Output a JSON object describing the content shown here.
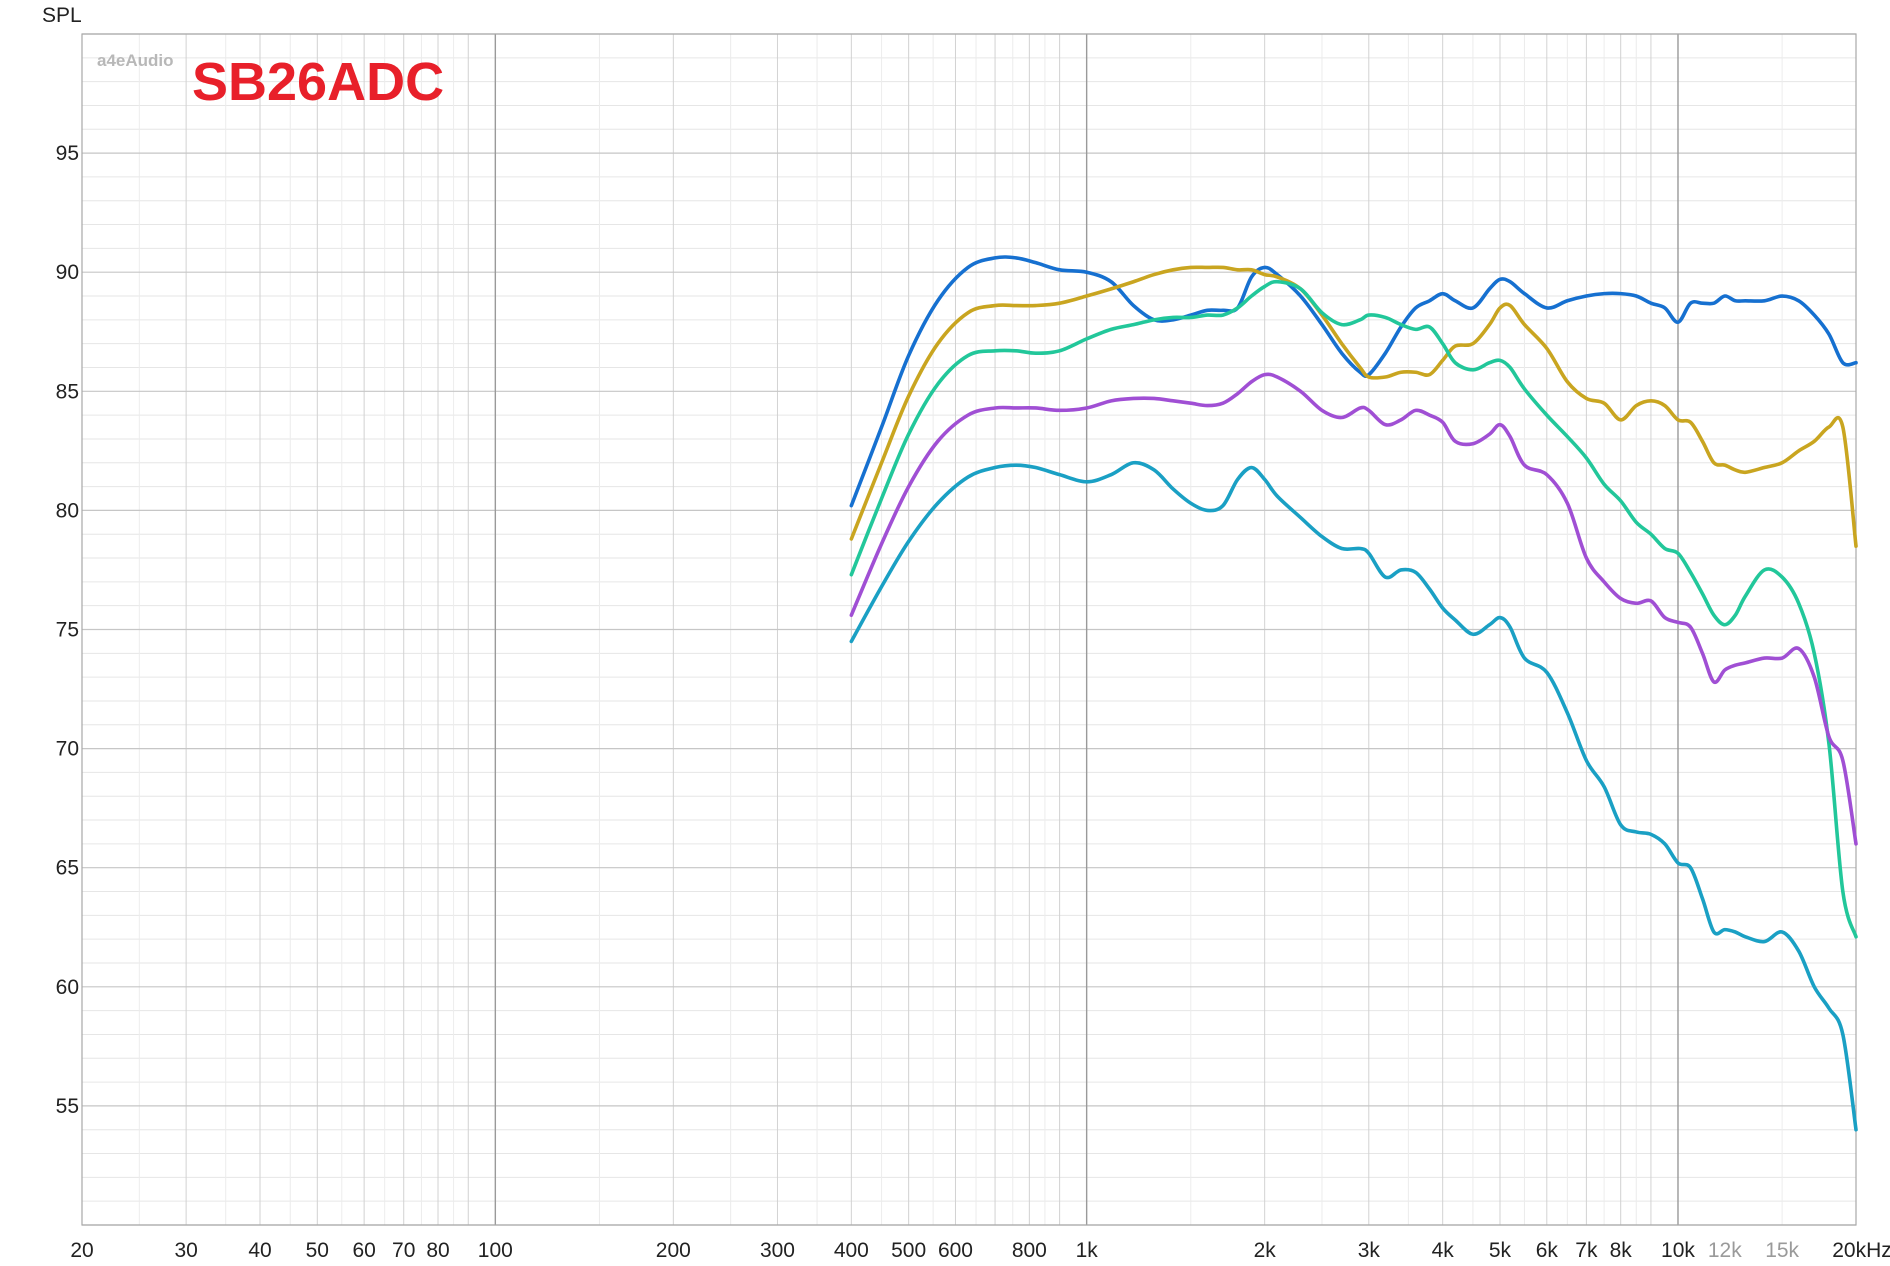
{
  "chart_data": {
    "type": "line",
    "title": "SB26ADC",
    "watermark": "a4eAudio",
    "ylabel": "SPL",
    "xunit": "kHz",
    "xscale": "log",
    "xlim": [
      20,
      20000
    ],
    "ylim": [
      50,
      100
    ],
    "grid": true,
    "title_color": "#e8202a",
    "x_ticks": [
      {
        "value": 20,
        "label": "20"
      },
      {
        "value": 30,
        "label": "30"
      },
      {
        "value": 40,
        "label": "40"
      },
      {
        "value": 50,
        "label": "50"
      },
      {
        "value": 60,
        "label": "60"
      },
      {
        "value": 70,
        "label": "70"
      },
      {
        "value": 80,
        "label": "80"
      },
      {
        "value": 100,
        "label": "100"
      },
      {
        "value": 200,
        "label": "200"
      },
      {
        "value": 300,
        "label": "300"
      },
      {
        "value": 400,
        "label": "400"
      },
      {
        "value": 500,
        "label": "500"
      },
      {
        "value": 600,
        "label": "600"
      },
      {
        "value": 800,
        "label": "800"
      },
      {
        "value": 1000,
        "label": "1k"
      },
      {
        "value": 2000,
        "label": "2k"
      },
      {
        "value": 3000,
        "label": "3k"
      },
      {
        "value": 4000,
        "label": "4k"
      },
      {
        "value": 5000,
        "label": "5k"
      },
      {
        "value": 6000,
        "label": "6k"
      },
      {
        "value": 7000,
        "label": "7k"
      },
      {
        "value": 8000,
        "label": "8k"
      },
      {
        "value": 10000,
        "label": "10k"
      },
      {
        "value": 12000,
        "label": "12k",
        "muted": true
      },
      {
        "value": 15000,
        "label": "15k",
        "muted": true
      },
      {
        "value": 20000,
        "label": "20kHz"
      }
    ],
    "y_ticks": [
      95,
      90,
      85,
      80,
      75,
      70,
      65,
      60,
      55
    ],
    "series": [
      {
        "color": "#1670d0",
        "x": [
          400,
          450,
          500,
          560,
          630,
          700,
          760,
          820,
          900,
          1000,
          1100,
          1200,
          1300,
          1400,
          1500,
          1600,
          1700,
          1800,
          1900,
          2000,
          2100,
          2300,
          2500,
          2700,
          2900,
          3000,
          3200,
          3400,
          3600,
          3800,
          4000,
          4200,
          4500,
          4800,
          5000,
          5200,
          5500,
          6000,
          6500,
          7000,
          7500,
          8000,
          8500,
          9000,
          9500,
          10000,
          10500,
          11000,
          11500,
          12000,
          12500,
          13000,
          14000,
          15000,
          16000,
          17000,
          18000,
          19000,
          20000
        ],
        "values": [
          80.2,
          83.5,
          86.5,
          88.8,
          90.2,
          90.6,
          90.6,
          90.4,
          90.1,
          90.0,
          89.6,
          88.6,
          88.0,
          88.0,
          88.2,
          88.4,
          88.4,
          88.5,
          89.8,
          90.2,
          89.9,
          89.0,
          87.8,
          86.6,
          85.8,
          85.7,
          86.6,
          87.7,
          88.5,
          88.8,
          89.1,
          88.8,
          88.5,
          89.3,
          89.7,
          89.6,
          89.1,
          88.5,
          88.8,
          89.0,
          89.1,
          89.1,
          89.0,
          88.7,
          88.5,
          87.9,
          88.7,
          88.7,
          88.7,
          89.0,
          88.8,
          88.8,
          88.8,
          89.0,
          88.8,
          88.2,
          87.4,
          86.2,
          86.2
        ]
      },
      {
        "color": "#c9a520",
        "x": [
          400,
          450,
          500,
          560,
          630,
          700,
          760,
          820,
          900,
          1000,
          1100,
          1200,
          1300,
          1400,
          1500,
          1600,
          1700,
          1800,
          1900,
          2000,
          2100,
          2300,
          2500,
          2700,
          2900,
          3000,
          3200,
          3400,
          3600,
          3800,
          4000,
          4200,
          4500,
          4800,
          5000,
          5200,
          5500,
          6000,
          6500,
          7000,
          7500,
          8000,
          8500,
          9000,
          9500,
          10000,
          10500,
          11000,
          11500,
          12000,
          12500,
          13000,
          14000,
          15000,
          16000,
          17000,
          18000,
          19000,
          20000
        ],
        "values": [
          78.8,
          82.0,
          84.8,
          87.0,
          88.3,
          88.6,
          88.6,
          88.6,
          88.7,
          89.0,
          89.3,
          89.6,
          89.9,
          90.1,
          90.2,
          90.2,
          90.2,
          90.1,
          90.1,
          89.9,
          89.8,
          89.3,
          88.2,
          87.0,
          86.0,
          85.6,
          85.6,
          85.8,
          85.8,
          85.7,
          86.3,
          86.9,
          87.0,
          87.8,
          88.5,
          88.6,
          87.8,
          86.8,
          85.4,
          84.7,
          84.5,
          83.8,
          84.4,
          84.6,
          84.4,
          83.8,
          83.7,
          82.9,
          82.0,
          81.9,
          81.7,
          81.6,
          81.8,
          82.0,
          82.5,
          82.9,
          83.5,
          83.5,
          78.5
        ]
      },
      {
        "color": "#22c79a",
        "x": [
          400,
          450,
          500,
          560,
          630,
          700,
          760,
          820,
          900,
          1000,
          1100,
          1200,
          1300,
          1400,
          1500,
          1600,
          1700,
          1800,
          1900,
          2000,
          2100,
          2300,
          2500,
          2700,
          2900,
          3000,
          3200,
          3400,
          3600,
          3800,
          4000,
          4200,
          4500,
          4800,
          5000,
          5200,
          5500,
          6000,
          6500,
          7000,
          7500,
          8000,
          8500,
          9000,
          9500,
          10000,
          10500,
          11000,
          11500,
          12000,
          12500,
          13000,
          14000,
          15000,
          16000,
          17000,
          18000,
          19000,
          20000
        ],
        "values": [
          77.3,
          80.5,
          83.2,
          85.3,
          86.5,
          86.7,
          86.7,
          86.6,
          86.7,
          87.2,
          87.6,
          87.8,
          88.0,
          88.1,
          88.1,
          88.2,
          88.2,
          88.5,
          89.0,
          89.4,
          89.6,
          89.3,
          88.3,
          87.8,
          88.0,
          88.2,
          88.1,
          87.8,
          87.6,
          87.7,
          87.0,
          86.2,
          85.9,
          86.2,
          86.3,
          86.0,
          85.1,
          84.0,
          83.1,
          82.2,
          81.1,
          80.4,
          79.5,
          79.0,
          78.4,
          78.2,
          77.4,
          76.5,
          75.6,
          75.2,
          75.6,
          76.4,
          77.5,
          77.2,
          76.1,
          74.0,
          70.2,
          64.0,
          62.1
        ]
      },
      {
        "color": "#a04fd4",
        "x": [
          400,
          450,
          500,
          560,
          630,
          700,
          760,
          820,
          900,
          1000,
          1100,
          1200,
          1300,
          1400,
          1500,
          1600,
          1700,
          1800,
          1900,
          2000,
          2100,
          2300,
          2500,
          2700,
          2900,
          3000,
          3200,
          3400,
          3600,
          3800,
          4000,
          4200,
          4500,
          4800,
          5000,
          5200,
          5500,
          6000,
          6500,
          7000,
          7500,
          8000,
          8500,
          9000,
          9500,
          10000,
          10500,
          11000,
          11500,
          12000,
          12500,
          13000,
          14000,
          15000,
          16000,
          17000,
          18000,
          19000,
          20000
        ],
        "values": [
          75.6,
          78.6,
          81.0,
          82.9,
          84.0,
          84.3,
          84.3,
          84.3,
          84.2,
          84.3,
          84.6,
          84.7,
          84.7,
          84.6,
          84.5,
          84.4,
          84.5,
          84.9,
          85.4,
          85.7,
          85.6,
          85.0,
          84.2,
          83.9,
          84.3,
          84.2,
          83.6,
          83.8,
          84.2,
          84.0,
          83.7,
          82.9,
          82.8,
          83.2,
          83.6,
          83.1,
          81.9,
          81.5,
          80.3,
          78.0,
          77.0,
          76.3,
          76.1,
          76.2,
          75.5,
          75.3,
          75.1,
          74.0,
          72.8,
          73.3,
          73.5,
          73.6,
          73.8,
          73.8,
          74.2,
          73.0,
          70.5,
          69.5,
          66.0
        ]
      },
      {
        "color": "#1aa0c4",
        "x": [
          400,
          450,
          500,
          560,
          630,
          700,
          760,
          820,
          900,
          1000,
          1100,
          1200,
          1300,
          1400,
          1500,
          1600,
          1700,
          1800,
          1900,
          2000,
          2100,
          2300,
          2500,
          2700,
          2900,
          3000,
          3200,
          3400,
          3600,
          3800,
          4000,
          4200,
          4500,
          4800,
          5000,
          5200,
          5500,
          6000,
          6500,
          7000,
          7500,
          8000,
          8500,
          9000,
          9500,
          10000,
          10500,
          11000,
          11500,
          12000,
          12500,
          13000,
          14000,
          15000,
          16000,
          17000,
          18000,
          19000,
          20000
        ],
        "values": [
          74.5,
          76.8,
          78.7,
          80.3,
          81.4,
          81.8,
          81.9,
          81.8,
          81.5,
          81.2,
          81.5,
          82.0,
          81.7,
          80.9,
          80.3,
          80.0,
          80.2,
          81.3,
          81.8,
          81.3,
          80.6,
          79.7,
          78.9,
          78.4,
          78.4,
          78.2,
          77.2,
          77.5,
          77.4,
          76.7,
          75.9,
          75.4,
          74.8,
          75.2,
          75.5,
          75.1,
          73.8,
          73.2,
          71.5,
          69.5,
          68.4,
          66.8,
          66.5,
          66.4,
          66.0,
          65.2,
          65.0,
          63.7,
          62.3,
          62.4,
          62.3,
          62.1,
          61.9,
          62.3,
          61.5,
          60.0,
          59.1,
          58.0,
          54.0
        ]
      }
    ]
  }
}
